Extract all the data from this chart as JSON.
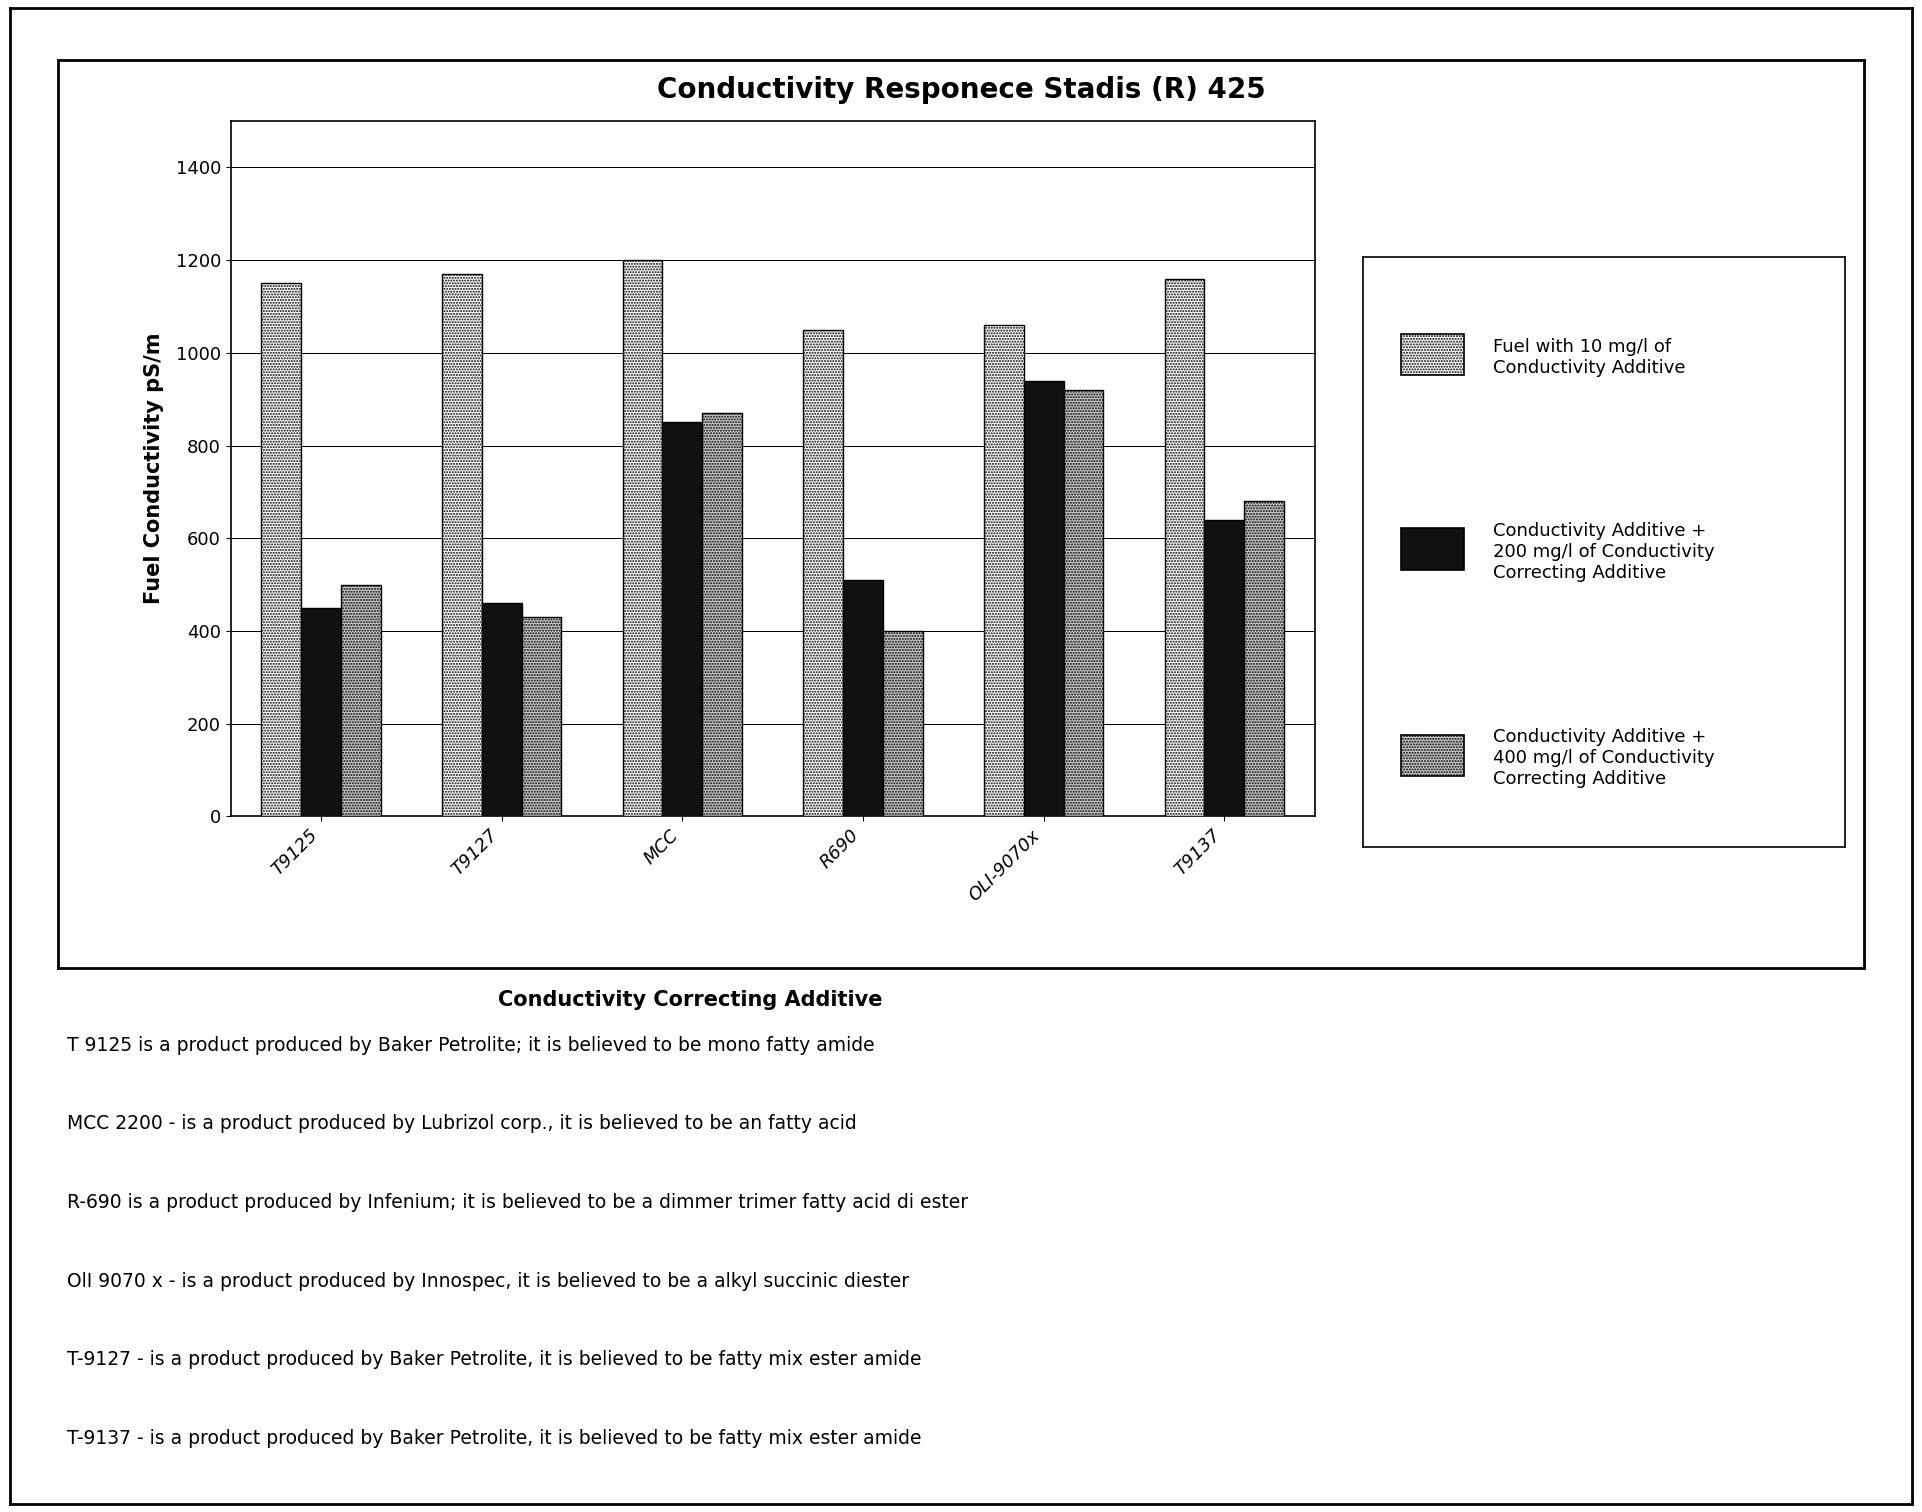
{
  "title": "Conductivity Responece Stadis (R) 425",
  "xlabel": "Conductivity Correcting Additive",
  "ylabel": "Fuel Conductivity pS/m",
  "categories": [
    "T9125",
    "T9127",
    "MCC",
    "R690",
    "OLI-9070x",
    "T9137"
  ],
  "series1_label": "Fuel with 10 mg/l of\nConductivity Additive",
  "series2_label": "Conductivity Additive +\n200 mg/l of Conductivity\nCorrecting Additive",
  "series3_label": "Conductivity Additive +\n400 mg/l of Conductivity\nCorrecting Additive",
  "series1_values": [
    1150,
    1170,
    1200,
    1050,
    1060,
    1160
  ],
  "series2_values": [
    450,
    460,
    850,
    510,
    940,
    640
  ],
  "series3_values": [
    500,
    430,
    870,
    400,
    920,
    680
  ],
  "ylim": [
    0,
    1500
  ],
  "yticks": [
    0,
    200,
    400,
    600,
    800,
    1000,
    1200,
    1400
  ],
  "bar_width": 0.22,
  "edgecolor": "black",
  "background_color": "white",
  "title_fontsize": 20,
  "axis_fontsize": 15,
  "tick_fontsize": 13,
  "legend_fontsize": 13,
  "footnotes": [
    "T 9125 is a product produced by Baker Petrolite; it is believed to be mono fatty amide",
    "MCC 2200 - is a product produced by Lubrizol corp., it is believed to be an fatty acid",
    "R-690 is a product produced by Infenium; it is believed to be a dimmer trimer fatty acid di ester",
    "OlI 9070 x - is a product produced by Innospec, it is believed to be a alkyl succinic diester",
    "T-9127 - is a product produced by Baker Petrolite, it is believed to be fatty mix ester amide",
    "T-9137 - is a product produced by Baker Petrolite, it is believed to be fatty mix ester amide"
  ],
  "footnote_fontsize": 13.5
}
